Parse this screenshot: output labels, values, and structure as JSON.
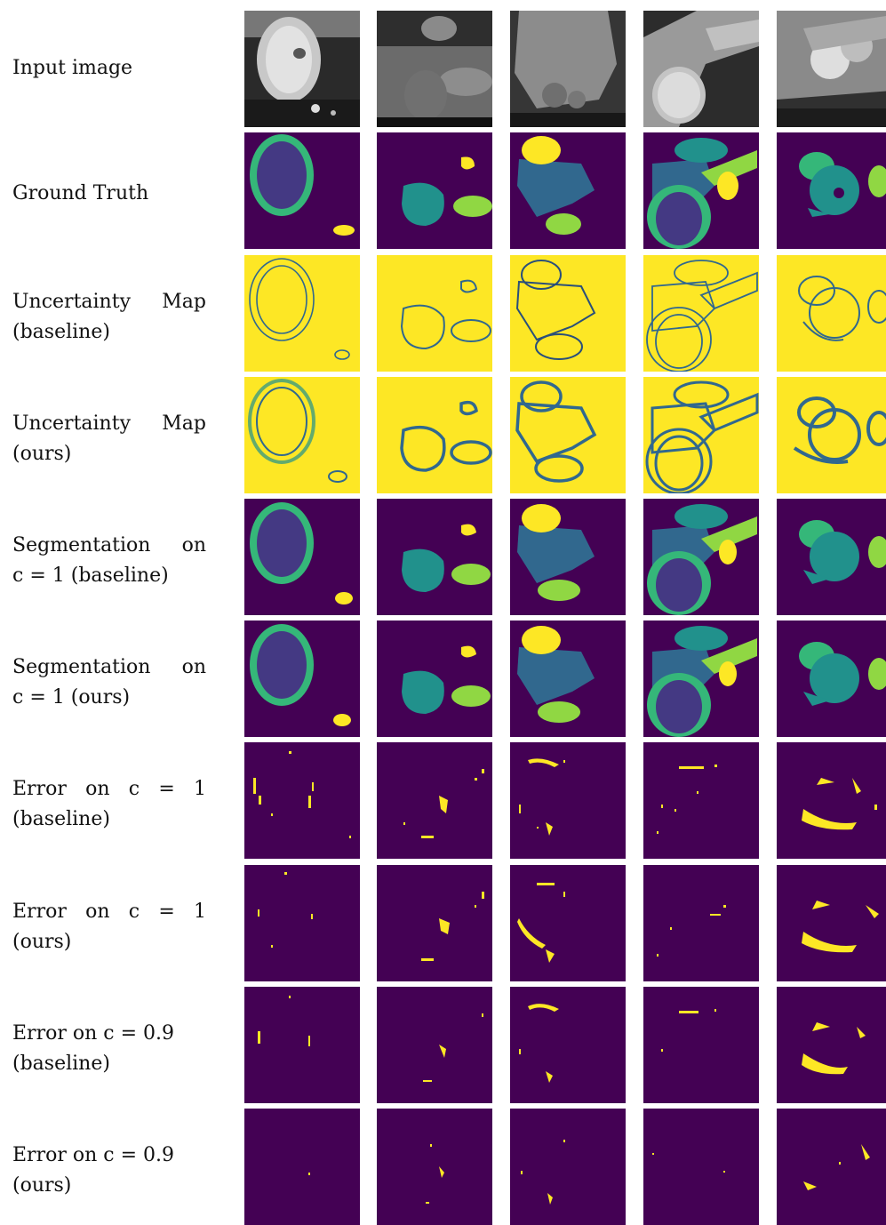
{
  "rows": [
    {
      "id": "input",
      "lines": [
        "Input image"
      ]
    },
    {
      "id": "gt",
      "lines": [
        "Ground Truth"
      ]
    },
    {
      "id": "unc-base",
      "lines": [
        "Uncertainty   Map",
        "(baseline)"
      ]
    },
    {
      "id": "unc-ours",
      "lines": [
        "Uncertainty   Map",
        "(ours)"
      ]
    },
    {
      "id": "seg-base",
      "lines": [
        "Segmentation   on",
        "c = 1 (baseline)"
      ]
    },
    {
      "id": "seg-ours",
      "lines": [
        "Segmentation   on",
        "c = 1 (ours)"
      ]
    },
    {
      "id": "err1-base",
      "lines": [
        "Error  on  c  =  1",
        "(baseline)"
      ]
    },
    {
      "id": "err1-ours",
      "lines": [
        "Error  on  c  =  1",
        "(ours)"
      ]
    },
    {
      "id": "err09-base",
      "lines": [
        "Error on c = 0.9",
        "(baseline)"
      ]
    },
    {
      "id": "err09-ours",
      "lines": [
        "Error on c = 0.9",
        "(ours)"
      ]
    }
  ],
  "colors": {
    "background": "#440154",
    "yellow": "#fde725",
    "green": "#35b779",
    "teal": "#21918c",
    "blue": "#31688e",
    "indigo": "#443983",
    "lime": "#90d743"
  }
}
